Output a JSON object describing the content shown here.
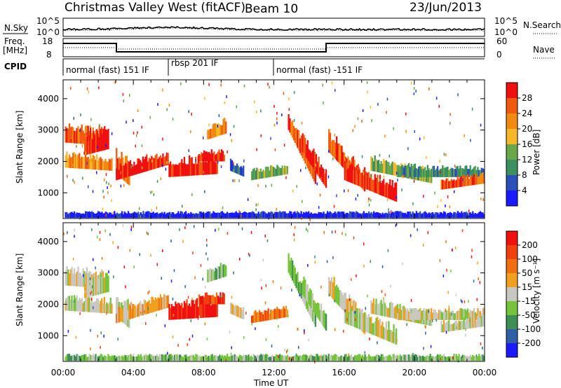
{
  "header": {
    "station": "Christmas Valley West (fitACF)",
    "beam": "Beam 10",
    "date": "23/Jun/2013"
  },
  "summary": {
    "left_labels": [
      "N.Sky",
      "Freq.",
      "[MHz]",
      "CPID"
    ],
    "right_labels": [
      "N.Search",
      "Nave"
    ],
    "noise_axis_ticks": [
      "10^5",
      "10^0"
    ],
    "freq_axis_ticks": [
      "18",
      "8"
    ],
    "nave_axis_ticks": [
      "60",
      "0"
    ],
    "cpid_segments": [
      {
        "label": "normal (fast) 151 IF",
        "start_hour": 0.0
      },
      {
        "label": "rbsp 201 IF",
        "start_hour": 6.0
      },
      {
        "label": "normal (fast) -151 IF",
        "start_hour": 12.0
      }
    ]
  },
  "colors": {
    "power_scale": [
      "#1a1aff",
      "#2c4fb8",
      "#3d8f5f",
      "#69a84a",
      "#f5b82a",
      "#f08a10",
      "#f05a10",
      "#f01010"
    ],
    "velocity_scale": [
      "#1a1aff",
      "#2e5fa8",
      "#3f8f55",
      "#75c43a",
      "#c8c8c0",
      "#f0a020",
      "#f07010",
      "#f04010",
      "#f01010"
    ]
  },
  "chart_data": [
    {
      "type": "heatmap",
      "name": "power",
      "xlabel": "Time UT",
      "ylabel": "Slant Range [km]",
      "x_ticks": [
        "00:00",
        "04:00",
        "08:00",
        "12:00",
        "16:00",
        "20:00",
        "00:00"
      ],
      "xlim_hours": [
        0,
        24
      ],
      "ylim": [
        180,
        4600
      ],
      "y_ticks": [
        1000,
        2000,
        3000,
        4000
      ],
      "colorbar_label": "Power [dB]",
      "colorbar_ticks": [
        4,
        8,
        12,
        16,
        20,
        24,
        28
      ]
    },
    {
      "type": "heatmap",
      "name": "velocity",
      "xlabel": "Time UT",
      "ylabel": "Slant Range [km]",
      "x_ticks": [
        "00:00",
        "04:00",
        "08:00",
        "12:00",
        "16:00",
        "20:00",
        "00:00"
      ],
      "xlim_hours": [
        0,
        24
      ],
      "ylim": [
        180,
        4600
      ],
      "y_ticks": [
        1000,
        2000,
        3000,
        4000
      ],
      "colorbar_label": "Velocity [m s⁻¹]",
      "colorbar_ticks": [
        200,
        100,
        50,
        15,
        -15,
        -50,
        -100,
        -200
      ]
    }
  ]
}
